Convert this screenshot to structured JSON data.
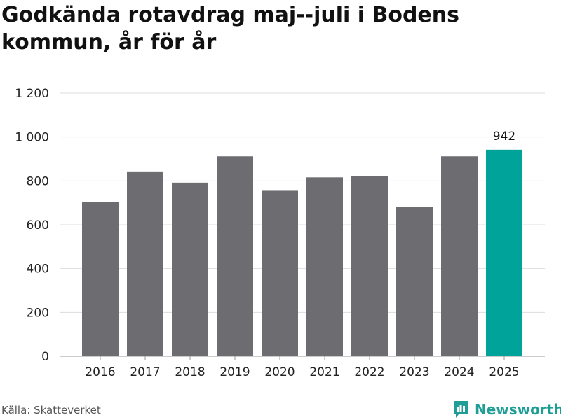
{
  "header": {
    "title": "Godkända rotavdrag maj--juli i Bodens kommun, år för år"
  },
  "footer": {
    "source": "Källa: Skatteverket",
    "brand": "Newsworthy",
    "brand_icon": "newsworthy-logo-icon"
  },
  "colors": {
    "bar": "#6d6c71",
    "highlight": "#00a39a",
    "grid": "#dcdcdc",
    "brand": "#1f9e96"
  },
  "chart_data": {
    "type": "bar",
    "title": "Godkända rotavdrag maj--juli i Bodens kommun, år för år",
    "xlabel": "",
    "ylabel": "",
    "categories": [
      "2016",
      "2017",
      "2018",
      "2019",
      "2020",
      "2021",
      "2022",
      "2023",
      "2024",
      "2025"
    ],
    "values": [
      705,
      843,
      792,
      912,
      755,
      816,
      822,
      683,
      912,
      942
    ],
    "ylim": [
      0,
      1200
    ],
    "yticks": [
      0,
      200,
      400,
      600,
      800,
      1000,
      1200
    ],
    "ytick_labels": [
      "0",
      "200",
      "400",
      "600",
      "800",
      "1 000",
      "1 200"
    ],
    "grid": true,
    "highlight_index": 9,
    "data_labels": [
      {
        "index": 9,
        "text": "942"
      }
    ]
  }
}
